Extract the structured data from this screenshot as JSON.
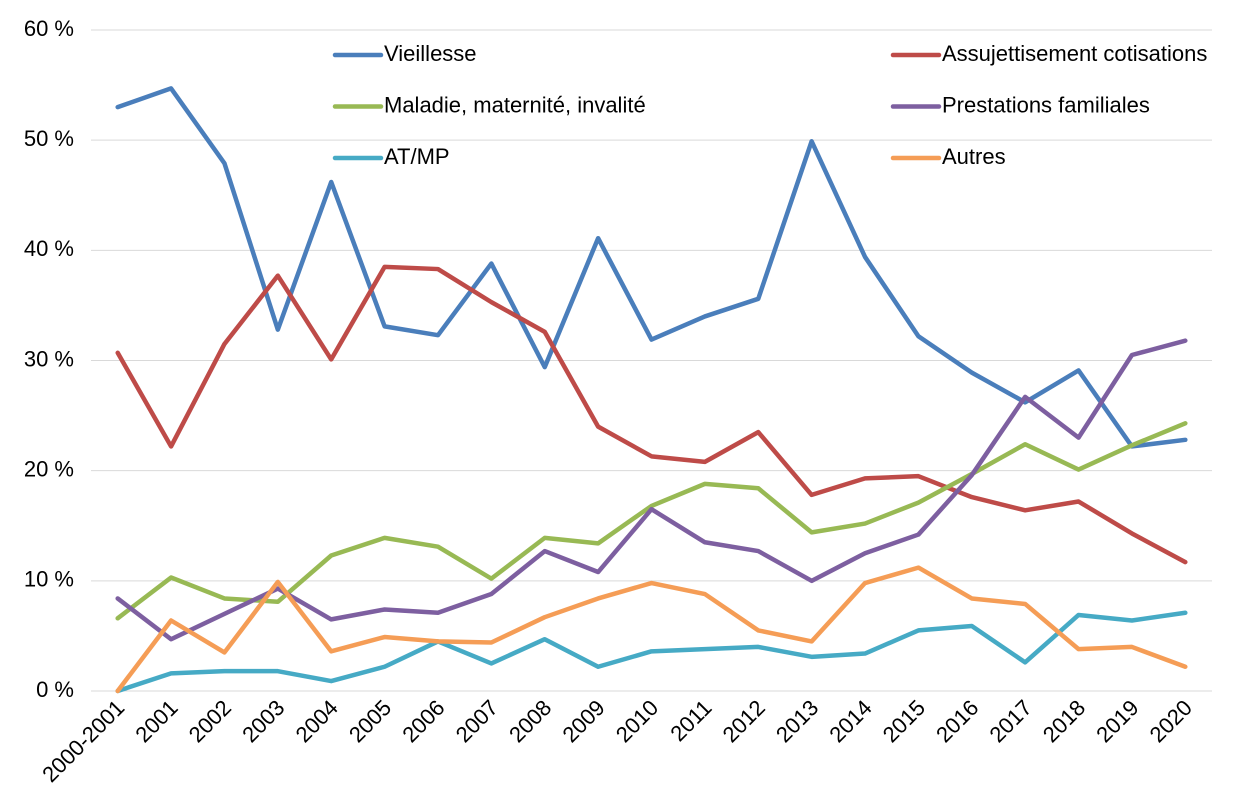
{
  "chart_data": {
    "type": "line",
    "categories": [
      "2000-2001",
      "2001",
      "2002",
      "2003",
      "2004",
      "2005",
      "2006",
      "2007",
      "2008",
      "2009",
      "2010",
      "2011",
      "2012",
      "2013",
      "2014",
      "2015",
      "2016",
      "2017",
      "2018",
      "2019",
      "2020"
    ],
    "series": [
      {
        "name": "Vieillesse",
        "color": "#4a7ebb",
        "values": [
          53.0,
          54.7,
          47.9,
          32.8,
          46.2,
          33.1,
          32.3,
          38.8,
          29.4,
          41.1,
          31.9,
          34.0,
          35.6,
          49.9,
          39.4,
          32.2,
          28.9,
          26.2,
          29.1,
          22.2,
          22.8
        ]
      },
      {
        "name": "Assujettisement cotisations",
        "color": "#be4b48",
        "values": [
          30.7,
          22.2,
          31.5,
          37.7,
          30.1,
          38.5,
          38.3,
          35.3,
          32.6,
          24.0,
          21.3,
          20.8,
          23.5,
          17.8,
          19.3,
          19.5,
          17.6,
          16.4,
          17.2,
          14.3,
          11.7
        ]
      },
      {
        "name": "Maladie, maternité, invalité",
        "color": "#98b954",
        "values": [
          6.6,
          10.3,
          8.4,
          8.1,
          12.3,
          13.9,
          13.1,
          10.2,
          13.9,
          13.4,
          16.8,
          18.8,
          18.4,
          14.4,
          15.2,
          17.1,
          19.7,
          22.4,
          20.1,
          22.3,
          24.3
        ]
      },
      {
        "name": "Prestations familiales",
        "color": "#7d5fa0",
        "values": [
          8.4,
          4.7,
          7.0,
          9.3,
          6.5,
          7.4,
          7.1,
          8.8,
          12.7,
          10.8,
          16.5,
          13.5,
          12.7,
          10.0,
          12.5,
          14.2,
          19.6,
          26.7,
          23.0,
          30.5,
          31.8
        ]
      },
      {
        "name": "AT/MP",
        "color": "#46aac5",
        "values": [
          0,
          1.6,
          1.8,
          1.8,
          0.9,
          2.2,
          4.5,
          2.5,
          4.7,
          2.2,
          3.6,
          3.8,
          4.0,
          3.1,
          3.4,
          5.5,
          5.9,
          2.6,
          6.9,
          6.4,
          7.1
        ]
      },
      {
        "name": "Autres",
        "color": "#f59d56",
        "values": [
          0,
          6.4,
          3.5,
          9.9,
          3.6,
          4.9,
          4.5,
          4.4,
          6.7,
          8.4,
          9.8,
          8.8,
          5.5,
          4.5,
          9.8,
          11.2,
          8.4,
          7.9,
          3.8,
          4.0,
          2.2
        ]
      }
    ],
    "ylim": [
      0,
      60
    ],
    "yticks": [
      {
        "value": 0,
        "label": "0 %"
      },
      {
        "value": 10,
        "label": "10 %"
      },
      {
        "value": 20,
        "label": "20 %"
      },
      {
        "value": 30,
        "label": "30 %"
      },
      {
        "value": 40,
        "label": "40 %"
      },
      {
        "value": 50,
        "label": "50 %"
      },
      {
        "value": 60,
        "label": "60 %"
      }
    ],
    "grid": true,
    "legend": "top"
  }
}
